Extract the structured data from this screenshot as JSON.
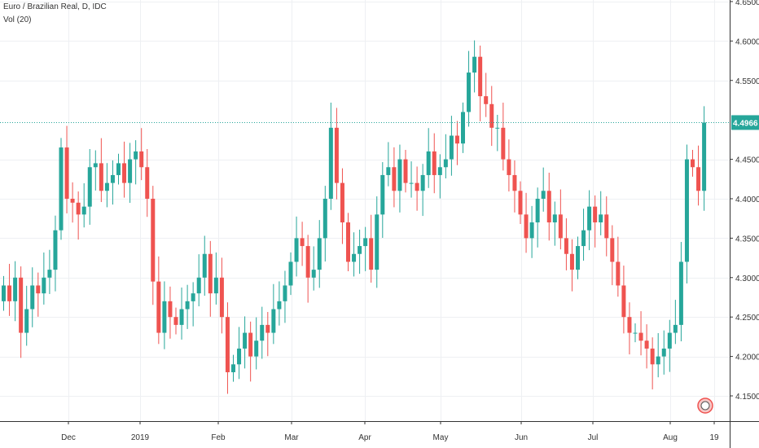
{
  "header": {
    "title": "Euro / Brazilian Real, D, IDC",
    "indicator": "Vol (20)"
  },
  "colors": {
    "up": "#26a69a",
    "down": "#ef5350",
    "price_line": "#26a69a",
    "grid": "#eef0f3",
    "axis": "#333333",
    "label_text": "#ffffff"
  },
  "price_label": "4.4966",
  "watermark_icon": "tradingview-logo-icon",
  "chart_data": {
    "type": "candlestick",
    "title": "Euro / Brazilian Real, D, IDC",
    "x_tick_labels": [
      "Dec",
      "2019",
      "Feb",
      "Mar",
      "Apr",
      "May",
      "Jun",
      "Jul",
      "Aug",
      "19"
    ],
    "y_tick_labels": [
      "4.1500",
      "4.2000",
      "4.2500",
      "4.3000",
      "4.3500",
      "4.4000",
      "4.4500",
      "4.4966",
      "4.5500",
      "4.6000",
      "4.6500"
    ],
    "y_range": [
      4.118,
      4.652
    ],
    "last_price": 4.4966,
    "grid": true,
    "closes": [
      4.29,
      4.27,
      4.3,
      4.23,
      4.26,
      4.29,
      4.28,
      4.3,
      4.31,
      4.36,
      4.465,
      4.4,
      4.395,
      4.38,
      4.39,
      4.44,
      4.445,
      4.41,
      4.42,
      4.43,
      4.445,
      4.42,
      4.45,
      4.46,
      4.44,
      4.4,
      4.295,
      4.23,
      4.27,
      4.25,
      4.24,
      4.26,
      4.27,
      4.28,
      4.3,
      4.33,
      4.28,
      4.3,
      4.25,
      4.18,
      4.19,
      4.21,
      4.23,
      4.2,
      4.22,
      4.24,
      4.23,
      4.26,
      4.27,
      4.29,
      4.32,
      4.35,
      4.34,
      4.3,
      4.31,
      4.35,
      4.4,
      4.49,
      4.42,
      4.37,
      4.32,
      4.33,
      4.34,
      4.35,
      4.31,
      4.38,
      4.43,
      4.44,
      4.41,
      4.45,
      4.42,
      4.42,
      4.41,
      4.43,
      4.46,
      4.43,
      4.44,
      4.45,
      4.48,
      4.47,
      4.51,
      4.56,
      4.58,
      4.53,
      4.52,
      4.49,
      4.49,
      4.45,
      4.43,
      4.41,
      4.38,
      4.35,
      4.37,
      4.4,
      4.41,
      4.37,
      4.38,
      4.35,
      4.33,
      4.31,
      4.34,
      4.36,
      4.39,
      4.37,
      4.38,
      4.35,
      4.32,
      4.29,
      4.25,
      4.23,
      4.23,
      4.22,
      4.21,
      4.19,
      4.2,
      4.21,
      4.23,
      4.24,
      4.32,
      4.45,
      4.44,
      4.41,
      4.4966
    ]
  }
}
